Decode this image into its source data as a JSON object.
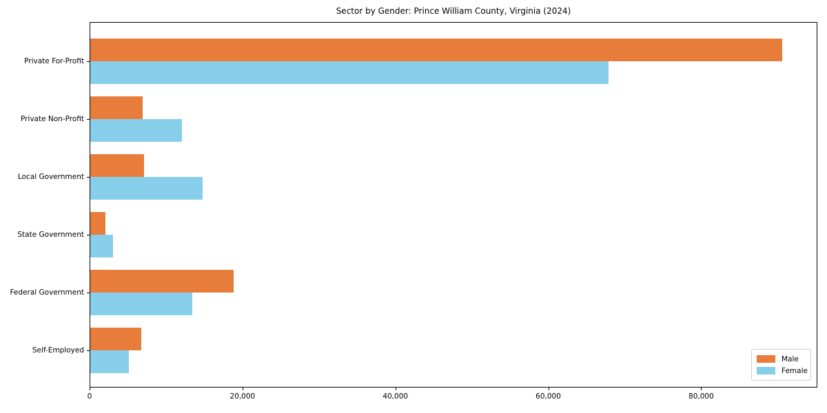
{
  "chart_data": {
    "type": "bar",
    "orientation": "horizontal",
    "title": "Sector by Gender: Prince William County, Virginia (2024)",
    "categories": [
      "Private For-Profit",
      "Private Non-Profit",
      "Local Government",
      "State Government",
      "Federal Government",
      "Self-Employed"
    ],
    "series": [
      {
        "name": "Male",
        "color": "#e87d3b",
        "values": [
          90600,
          6900,
          7100,
          2100,
          18800,
          6800
        ]
      },
      {
        "name": "Female",
        "color": "#87ceeb",
        "values": [
          67900,
          12100,
          14800,
          3100,
          13400,
          5100
        ]
      }
    ],
    "xlabel": "",
    "ylabel": "",
    "xlim": [
      0,
      95200
    ],
    "x_ticks": [
      0,
      20000,
      40000,
      60000,
      80000
    ],
    "x_tick_labels": [
      "0",
      "20,000",
      "40,000",
      "60,000",
      "80,000"
    ],
    "legend_position": "lower right",
    "grid": false,
    "frame": true
  }
}
